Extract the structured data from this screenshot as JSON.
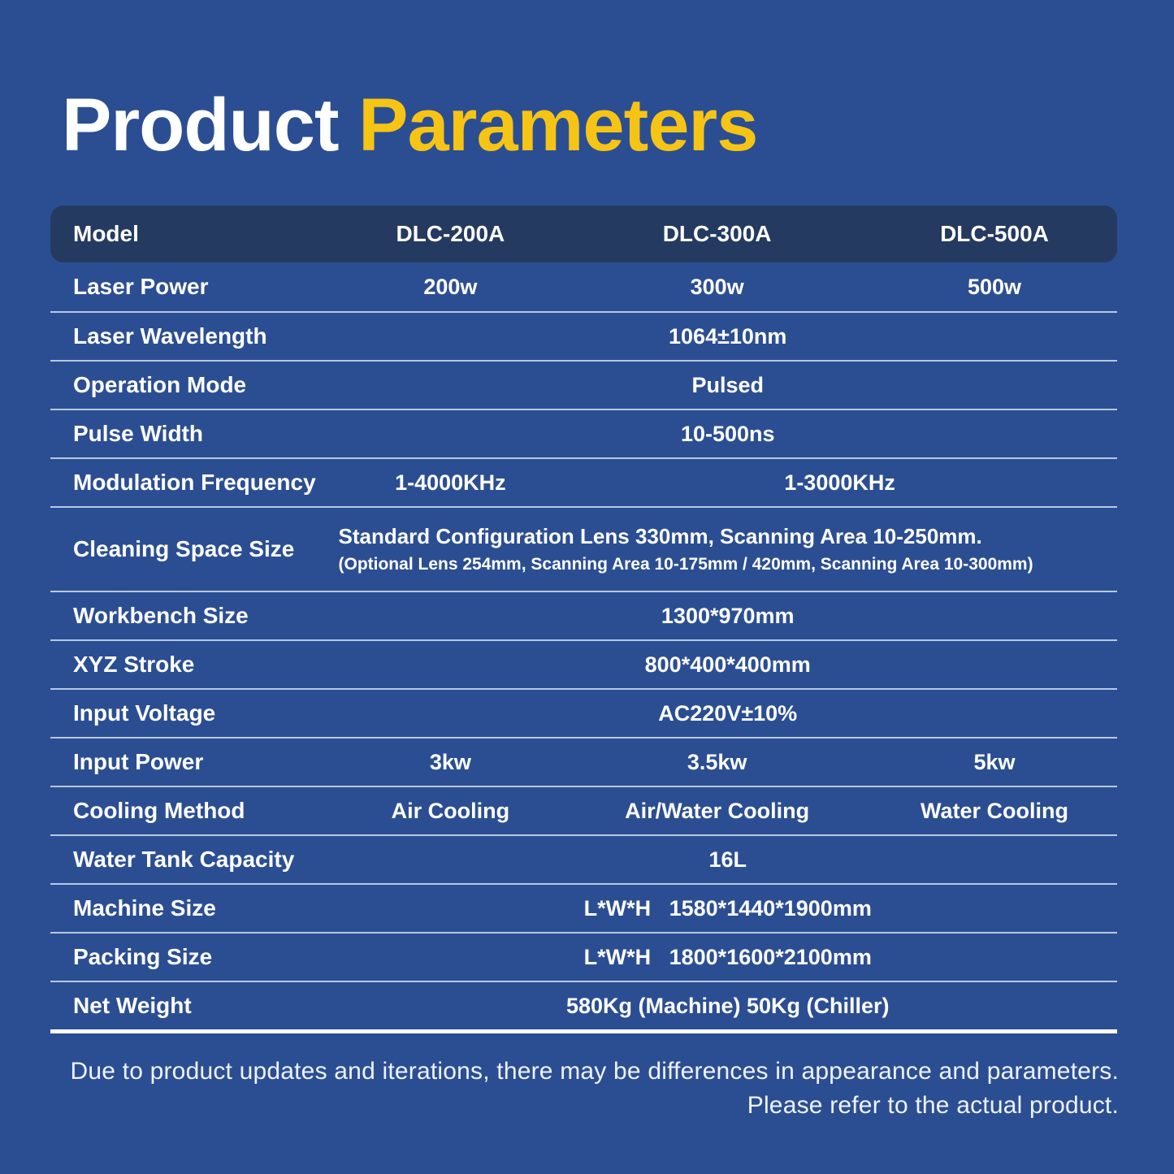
{
  "title": {
    "part1": "Product",
    "part2": "Parameters"
  },
  "colors": {
    "background": "#2b4e93",
    "header_row": "#253a61",
    "accent_yellow": "#f6c415",
    "text": "#ffffff",
    "separator": "rgba(224,235,252,0.78)"
  },
  "table": {
    "header": {
      "label": "Model",
      "values": [
        "DLC-200A",
        "DLC-300A",
        "DLC-500A"
      ]
    },
    "rows": [
      {
        "label": "Laser Power",
        "type": "three",
        "values": [
          "200w",
          "300w",
          "500w"
        ]
      },
      {
        "label": "Laser Wavelength",
        "type": "full",
        "value": "1064±10nm"
      },
      {
        "label": "Operation Mode",
        "type": "full",
        "value": "Pulsed"
      },
      {
        "label": "Pulse Width",
        "type": "full",
        "value": "10-500ns"
      },
      {
        "label": "Modulation Frequency",
        "type": "split",
        "value1": "1-4000KHz",
        "value2": "1-3000KHz"
      },
      {
        "label": "Cleaning Space Size",
        "type": "twoline",
        "line1": "Standard Configuration Lens 330mm, Scanning Area 10-250mm.",
        "line2": "(Optional Lens 254mm, Scanning Area 10-175mm / 420mm, Scanning Area 10-300mm)"
      },
      {
        "label": "Workbench Size",
        "type": "full",
        "value": "1300*970mm"
      },
      {
        "label": "XYZ Stroke",
        "type": "full",
        "value": "800*400*400mm"
      },
      {
        "label": "Input Voltage",
        "type": "full",
        "value": "AC220V±10%"
      },
      {
        "label": "Input Power",
        "type": "three",
        "values": [
          "3kw",
          "3.5kw",
          "5kw"
        ]
      },
      {
        "label": "Cooling Method",
        "type": "three",
        "values": [
          "Air Cooling",
          "Air/Water Cooling",
          "Water Cooling"
        ]
      },
      {
        "label": "Water Tank Capacity",
        "type": "full",
        "value": "16L"
      },
      {
        "label": "Machine Size",
        "type": "full",
        "value": "L*W*H   1580*1440*1900mm"
      },
      {
        "label": "Packing Size",
        "type": "full",
        "value": "L*W*H   1800*1600*2100mm"
      },
      {
        "label": "Net Weight",
        "type": "full",
        "value": "580Kg (Machine) 50Kg (Chiller)"
      }
    ]
  },
  "footer": {
    "line1": "Due to product updates and iterations, there may be differences in appearance and parameters.",
    "line2": "Please refer to the actual product."
  }
}
